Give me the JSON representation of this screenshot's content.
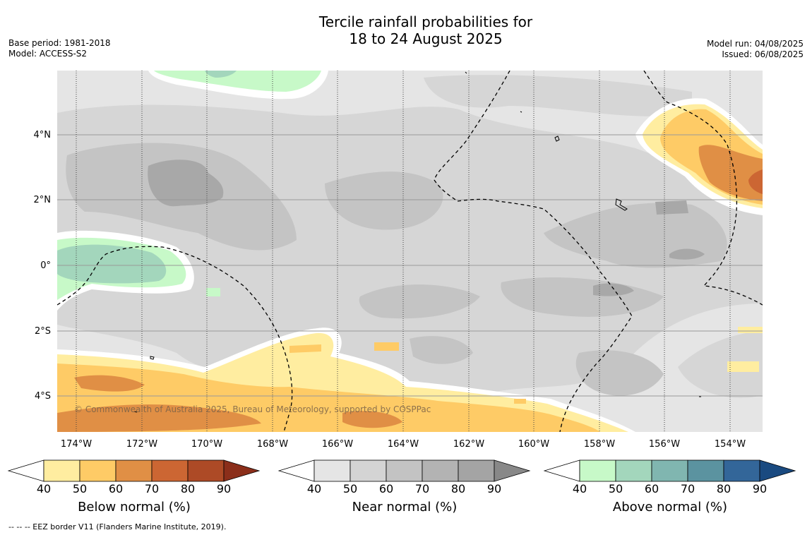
{
  "title_line1": "Tercile rainfall probabilities for",
  "title_line2": "18 to 24 August 2025",
  "base_period": "Base period: 1981-2018",
  "model": "Model: ACCESS-S2",
  "model_run": "Model run: 04/08/2025",
  "issued": "Issued: 06/08/2025",
  "copyright": "© Commonwealth of Australia 2025, Bureau of Meteorology, supported by COSPPac",
  "lat_labels": [
    "4°N",
    "2°N",
    "0°",
    "2°S",
    "4°S"
  ],
  "lon_labels": [
    "174°W",
    "172°W",
    "170°W",
    "168°W",
    "166°W",
    "164°W",
    "162°W",
    "160°W",
    "158°W",
    "156°W",
    "154°W"
  ],
  "colorbars": {
    "below": {
      "title": "Below normal (%)",
      "ticks": [
        "40",
        "50",
        "60",
        "70",
        "80",
        "90"
      ],
      "colors": [
        "#ffeda0",
        "#fecb66",
        "#e08f45",
        "#cc6633",
        "#ad4a26",
        "#8b2e1a"
      ]
    },
    "near": {
      "title": "Near normal (%)",
      "ticks": [
        "40",
        "50",
        "60",
        "70",
        "80",
        "90"
      ],
      "colors": [
        "#e5e5e5",
        "#d4d4d4",
        "#c3c3c3",
        "#b3b3b3",
        "#a4a4a4",
        "#888888"
      ]
    },
    "above": {
      "title": "Above normal (%)",
      "ticks": [
        "40",
        "50",
        "60",
        "70",
        "80",
        "90"
      ],
      "colors": [
        "#c7f9c8",
        "#a3d6bc",
        "#80b6b0",
        "#5b93a0",
        "#336699",
        "#1a4a80"
      ]
    }
  },
  "footnote": "--  --  -- EEZ border V11 (Flanders Marine Institute, 2019)."
}
